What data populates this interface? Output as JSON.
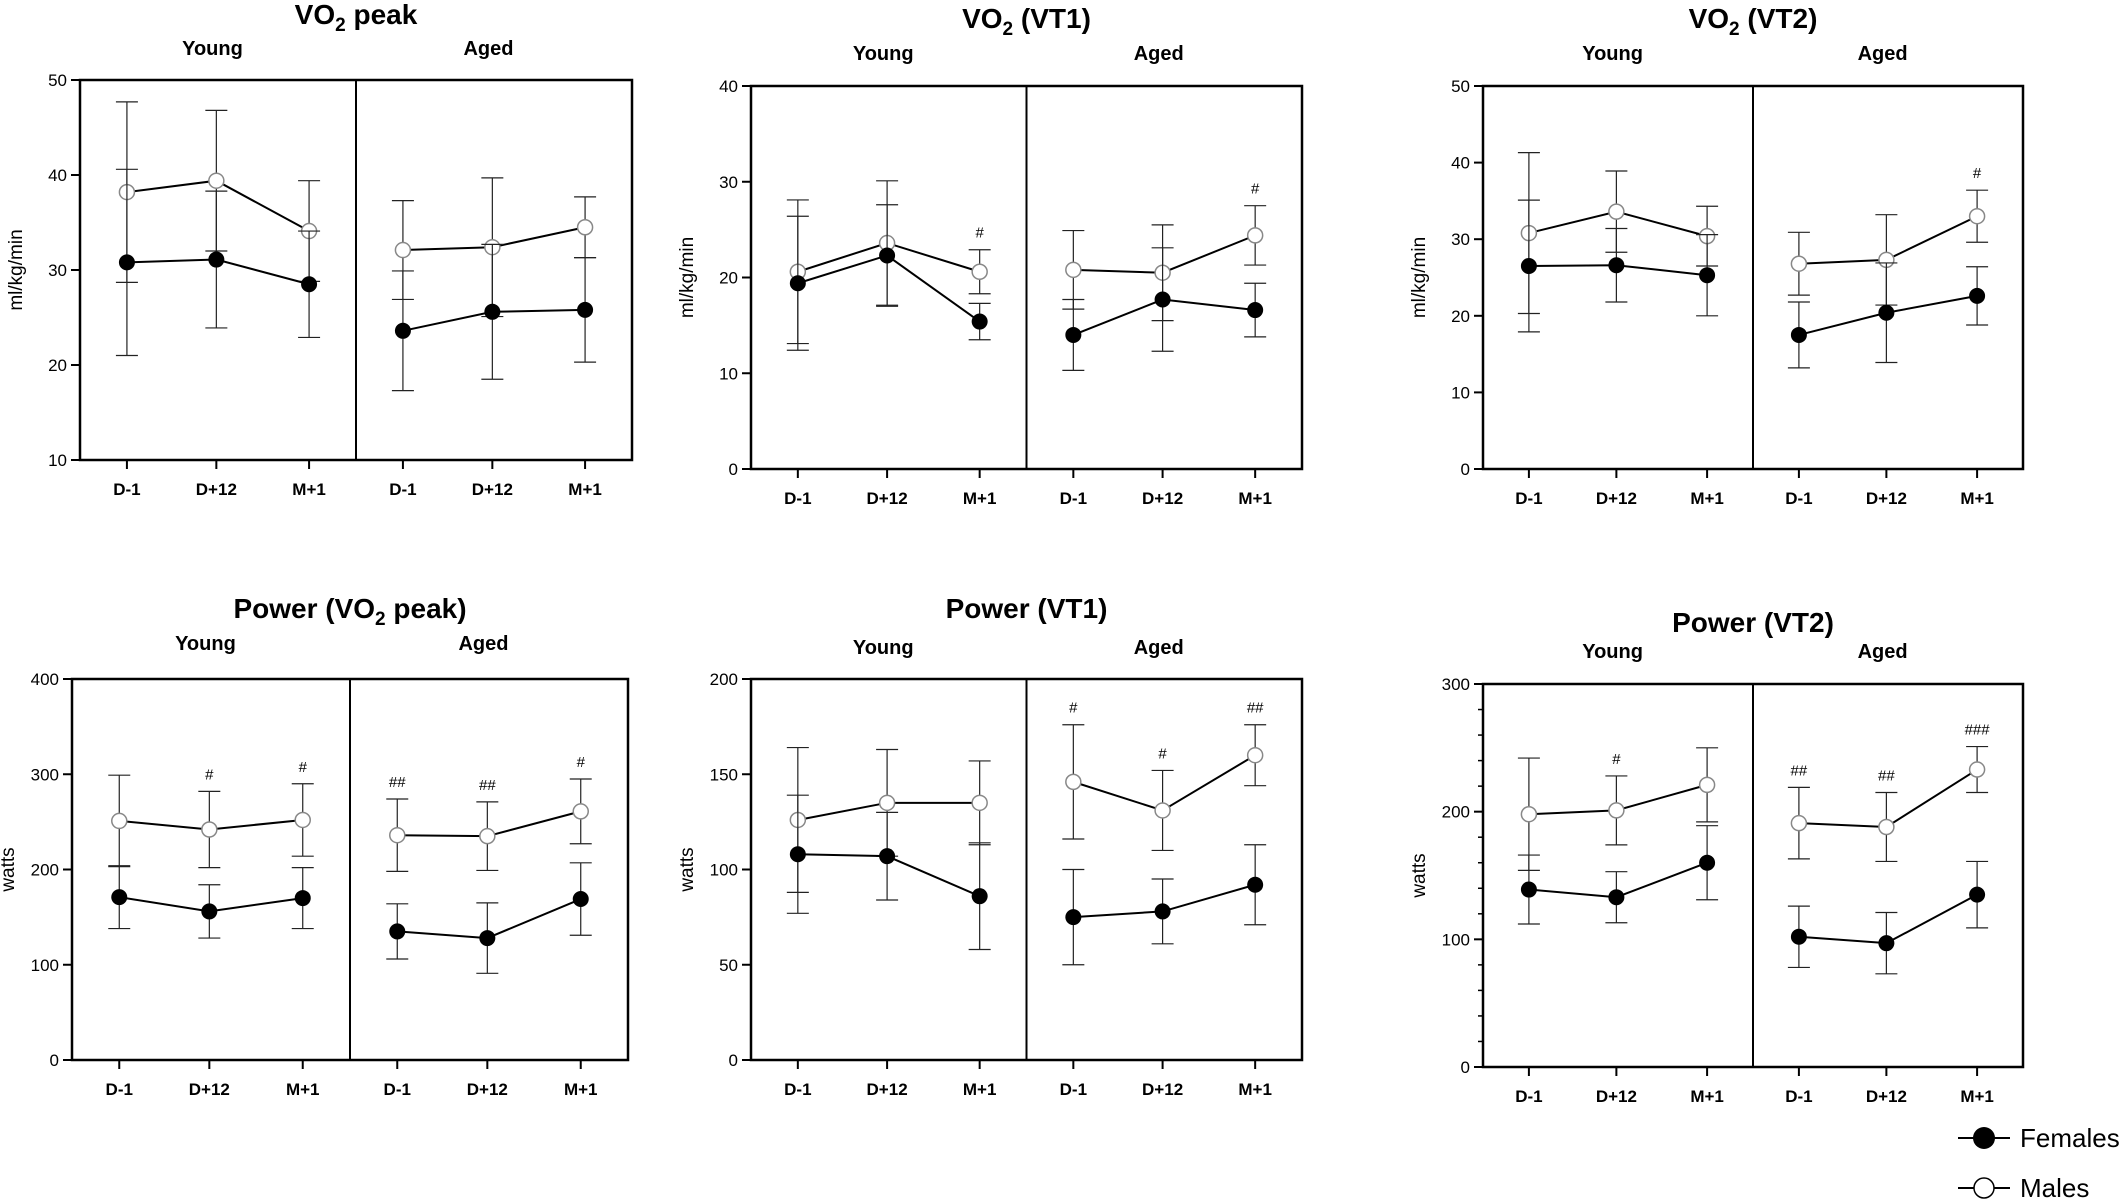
{
  "legend": {
    "females": "Females",
    "males": "Males"
  },
  "chart_data": [
    {
      "type": "line",
      "title": "VO2 peak",
      "title_main": "VO",
      "title_sub": "2",
      "title_rest": " peak",
      "ylabel": "ml/kg/min",
      "ylim": [
        10,
        50
      ],
      "yticks": [
        10,
        20,
        30,
        40,
        50
      ],
      "groups": [
        "Young",
        "Aged"
      ],
      "categories": [
        "D-1",
        "D+12",
        "M+1"
      ],
      "series": [
        {
          "name": "Males",
          "values": [
            [
              38.2,
              39.4,
              34.1
            ],
            [
              32.1,
              32.4,
              34.5
            ]
          ],
          "err": [
            [
              9.5,
              7.4,
              5.3
            ],
            [
              5.2,
              7.3,
              3.2
            ]
          ],
          "sig": [
            [
              "",
              "",
              ""
            ],
            [
              "",
              "",
              ""
            ]
          ]
        },
        {
          "name": "Females",
          "values": [
            [
              30.8,
              31.1,
              28.5
            ],
            [
              23.6,
              25.6,
              25.8
            ]
          ],
          "err": [
            [
              9.8,
              7.2,
              5.6
            ],
            [
              6.3,
              7.1,
              5.5
            ]
          ]
        }
      ]
    },
    {
      "type": "line",
      "title": "VO2 (VT1)",
      "title_main": "VO",
      "title_sub": "2",
      "title_rest": " (VT1)",
      "ylabel": "ml/kg/min",
      "ylim": [
        0,
        40
      ],
      "yticks": [
        0,
        10,
        20,
        30,
        40
      ],
      "groups": [
        "Young",
        "Aged"
      ],
      "categories": [
        "D-1",
        "D+12",
        "M+1"
      ],
      "series": [
        {
          "name": "Males",
          "values": [
            [
              20.6,
              23.6,
              20.6
            ],
            [
              20.8,
              20.5,
              24.4
            ]
          ],
          "err": [
            [
              7.5,
              6.5,
              2.3
            ],
            [
              4.1,
              5.0,
              3.1
            ]
          ],
          "sig": [
            [
              "",
              "",
              "#"
            ],
            [
              "",
              "",
              "#"
            ]
          ]
        },
        {
          "name": "Females",
          "values": [
            [
              19.4,
              22.3,
              15.4
            ],
            [
              14.0,
              17.7,
              16.6
            ]
          ],
          "err": [
            [
              7.0,
              5.3,
              1.9
            ],
            [
              3.7,
              5.4,
              2.8
            ]
          ]
        }
      ]
    },
    {
      "type": "line",
      "title": "VO2 (VT2)",
      "title_main": "VO",
      "title_sub": "2",
      "title_rest": " (VT2)",
      "ylabel": "ml/kg/min",
      "ylim": [
        0,
        50
      ],
      "yticks": [
        0,
        10,
        20,
        30,
        40,
        50
      ],
      "groups": [
        "Young",
        "Aged"
      ],
      "categories": [
        "D-1",
        "D+12",
        "M+1"
      ],
      "series": [
        {
          "name": "Males",
          "values": [
            [
              30.8,
              33.6,
              30.4
            ],
            [
              26.8,
              27.3,
              33.0
            ]
          ],
          "err": [
            [
              10.5,
              5.3,
              3.9
            ],
            [
              4.1,
              5.9,
              3.4
            ]
          ],
          "sig": [
            [
              "",
              "",
              ""
            ],
            [
              "",
              "",
              "#"
            ]
          ]
        },
        {
          "name": "Females",
          "values": [
            [
              26.5,
              26.6,
              25.3
            ],
            [
              17.5,
              20.4,
              22.6
            ]
          ],
          "err": [
            [
              8.6,
              4.8,
              5.3
            ],
            [
              4.3,
              6.5,
              3.8
            ]
          ]
        }
      ]
    },
    {
      "type": "line",
      "title": "Power (VO2 peak)",
      "title_main": "Power (VO",
      "title_sub": "2",
      "title_rest": " peak)",
      "ylabel": "watts",
      "ylim": [
        0,
        400
      ],
      "yticks": [
        0,
        100,
        200,
        300,
        400
      ],
      "groups": [
        "Young",
        "Aged"
      ],
      "categories": [
        "D-1",
        "D+12",
        "M+1"
      ],
      "series": [
        {
          "name": "Males",
          "values": [
            [
              251,
              242,
              252
            ],
            [
              236,
              235,
              261
            ]
          ],
          "err": [
            [
              48,
              40,
              38
            ],
            [
              38,
              36,
              34
            ]
          ],
          "sig": [
            [
              "",
              "#",
              "#"
            ],
            [
              "##",
              "##",
              "#"
            ]
          ]
        },
        {
          "name": "Females",
          "values": [
            [
              171,
              156,
              170
            ],
            [
              135,
              128,
              169
            ]
          ],
          "err": [
            [
              33,
              28,
              32
            ],
            [
              29,
              37,
              38
            ]
          ]
        }
      ]
    },
    {
      "type": "line",
      "title": "Power (VT1)",
      "title_main": "Power (VT1)",
      "title_sub": "",
      "title_rest": "",
      "ylabel": "watts",
      "ylim": [
        0,
        200
      ],
      "yticks": [
        0,
        50,
        100,
        150,
        200
      ],
      "groups": [
        "Young",
        "Aged"
      ],
      "categories": [
        "D-1",
        "D+12",
        "M+1"
      ],
      "series": [
        {
          "name": "Males",
          "values": [
            [
              126,
              135,
              135
            ],
            [
              146,
              131,
              160
            ]
          ],
          "err": [
            [
              38,
              28,
              22
            ],
            [
              30,
              21,
              16
            ]
          ],
          "sig": [
            [
              "",
              "",
              ""
            ],
            [
              "#",
              "#",
              "##"
            ]
          ]
        },
        {
          "name": "Females",
          "values": [
            [
              108,
              107,
              86
            ],
            [
              75,
              78,
              92
            ]
          ],
          "err": [
            [
              31,
              23,
              28
            ],
            [
              25,
              17,
              21
            ]
          ]
        }
      ]
    },
    {
      "type": "line",
      "title": "Power (VT2)",
      "title_main": "Power (VT2)",
      "title_sub": "",
      "title_rest": "",
      "ylabel": "watts",
      "ylim": [
        0,
        300
      ],
      "yticks": [
        0,
        100,
        200,
        300
      ],
      "groups": [
        "Young",
        "Aged"
      ],
      "categories": [
        "D-1",
        "D+12",
        "M+1"
      ],
      "series": [
        {
          "name": "Males",
          "values": [
            [
              198,
              201,
              221
            ],
            [
              191,
              188,
              233
            ]
          ],
          "err": [
            [
              44,
              27,
              29
            ],
            [
              28,
              27,
              18
            ]
          ],
          "sig": [
            [
              "",
              "#",
              ""
            ],
            [
              "##",
              "##",
              "###"
            ]
          ]
        },
        {
          "name": "Females",
          "values": [
            [
              139,
              133,
              160
            ],
            [
              102,
              97,
              135
            ]
          ],
          "err": [
            [
              27,
              20,
              29
            ],
            [
              24,
              24,
              26
            ]
          ]
        }
      ]
    }
  ]
}
